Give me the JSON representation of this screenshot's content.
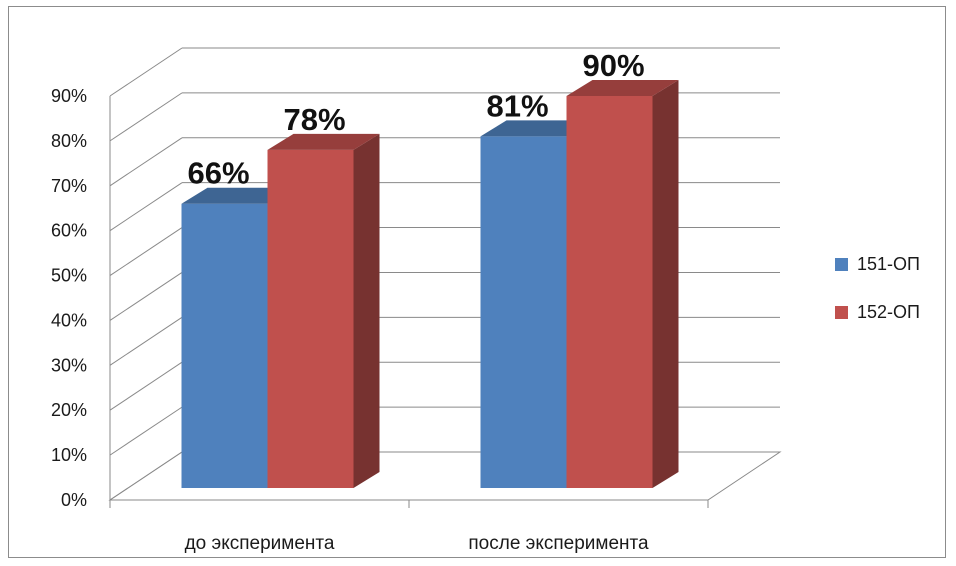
{
  "chart_data": {
    "type": "bar",
    "style": "3d-clustered-column",
    "categories": [
      "до эксперимента",
      "после эксперимента"
    ],
    "series": [
      {
        "name": "151-ОП",
        "values": [
          66,
          81
        ],
        "color": "#4F81BD"
      },
      {
        "name": "152-ОП",
        "values": [
          78,
          90
        ],
        "color": "#C0504D"
      }
    ],
    "data_labels": [
      [
        "66%",
        "81%"
      ],
      [
        "78%",
        "90%"
      ]
    ],
    "y_ticks": [
      "0%",
      "10%",
      "20%",
      "30%",
      "40%",
      "50%",
      "60%",
      "70%",
      "80%",
      "90%"
    ],
    "ylim": [
      0,
      90
    ],
    "y_unit": "%",
    "grid": true,
    "legend_position": "right",
    "title": "",
    "xlabel": "",
    "ylabel": ""
  }
}
